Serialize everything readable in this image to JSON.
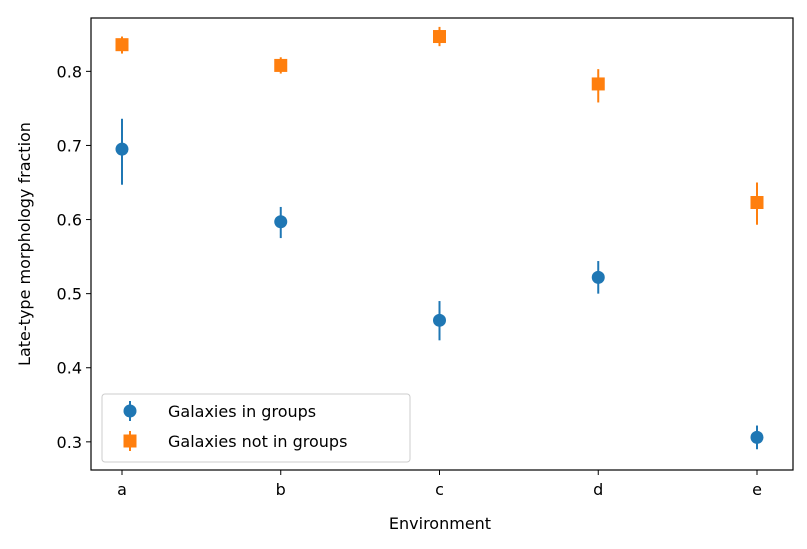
{
  "chart_data": {
    "type": "scatter",
    "title": "",
    "xlabel": "Environment",
    "ylabel": "Late-type morphology fraction",
    "categories": [
      "a",
      "b",
      "c",
      "d",
      "e"
    ],
    "yticks": [
      "0.3",
      "0.4",
      "0.5",
      "0.6",
      "0.7",
      "0.8"
    ],
    "ylim": [
      0.262,
      0.872
    ],
    "grid": false,
    "legend_position": "lower-left",
    "series": [
      {
        "name": "Galaxies in groups",
        "marker": "circle",
        "color": "#1f77b4",
        "values": [
          0.695,
          0.597,
          0.464,
          0.522,
          0.306
        ],
        "err_low": [
          0.647,
          0.575,
          0.437,
          0.5,
          0.29
        ],
        "err_high": [
          0.736,
          0.617,
          0.49,
          0.544,
          0.322
        ]
      },
      {
        "name": "Galaxies not in groups",
        "marker": "square",
        "color": "#ff7f0e",
        "values": [
          0.836,
          0.808,
          0.847,
          0.783,
          0.623
        ],
        "err_low": [
          0.824,
          0.797,
          0.834,
          0.758,
          0.593
        ],
        "err_high": [
          0.847,
          0.819,
          0.86,
          0.803,
          0.65
        ]
      }
    ]
  }
}
